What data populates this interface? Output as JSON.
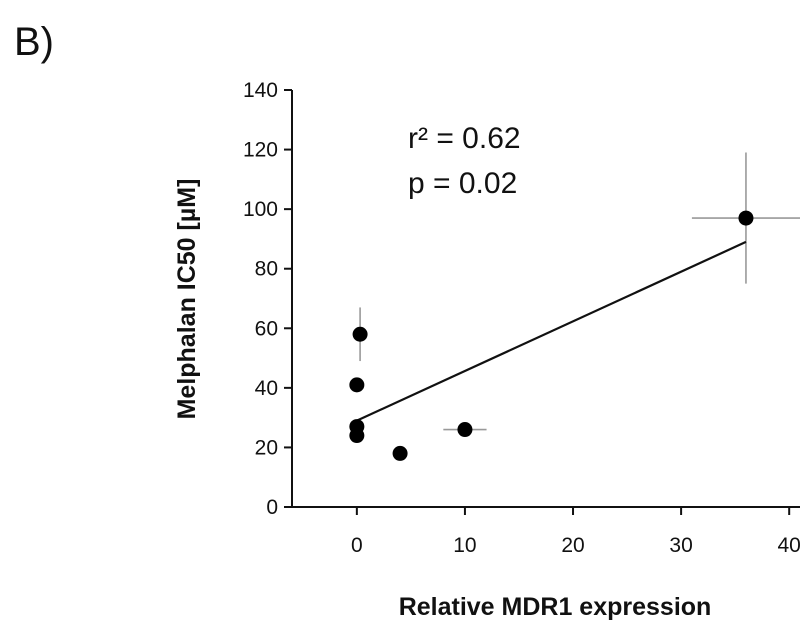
{
  "panel_label": "B)",
  "chart_data": {
    "type": "scatter",
    "xlabel": "Relative MDR1 expression",
    "ylabel": "Melphalan IC50 [µM]",
    "xlim": [
      -6,
      41
    ],
    "ylim": [
      0,
      140
    ],
    "xticks": [
      0,
      10,
      20,
      30,
      40
    ],
    "yticks": [
      0,
      20,
      40,
      60,
      80,
      100,
      120,
      140
    ],
    "annotations": [
      "r² = 0.62",
      "p = 0.02"
    ],
    "points": [
      {
        "x": 0.3,
        "y": 58,
        "xerr": 0,
        "yerr": 9
      },
      {
        "x": 0,
        "y": 41,
        "xerr": 0,
        "yerr": 0
      },
      {
        "x": 0,
        "y": 27,
        "xerr": 0,
        "yerr": 0
      },
      {
        "x": 0,
        "y": 24,
        "xerr": 0,
        "yerr": 0
      },
      {
        "x": 4,
        "y": 18,
        "xerr": 0,
        "yerr": 0
      },
      {
        "x": 10,
        "y": 26,
        "xerr": 2,
        "yerr": 0
      },
      {
        "x": 36,
        "y": 97,
        "xerr": 5,
        "yerr": 22
      }
    ],
    "regression": {
      "x": [
        0,
        36
      ],
      "y": [
        29,
        89
      ]
    },
    "grid": false,
    "colors": {
      "points": "#000000",
      "line": "#111111",
      "errorbars": "#999999"
    }
  }
}
